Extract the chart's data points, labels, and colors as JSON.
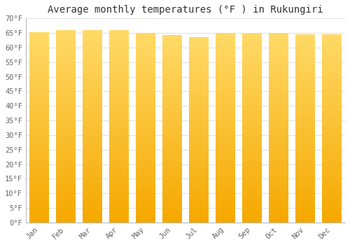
{
  "title": "Average monthly temperatures (°F ) in Rukungiri",
  "months": [
    "Jan",
    "Feb",
    "Mar",
    "Apr",
    "May",
    "Jun",
    "Jul",
    "Aug",
    "Sep",
    "Oct",
    "Nov",
    "Dec"
  ],
  "values": [
    65.3,
    66.0,
    66.0,
    66.0,
    65.1,
    64.2,
    63.7,
    65.0,
    65.0,
    65.0,
    64.6,
    64.6
  ],
  "bar_color_bottom": "#F5A800",
  "bar_color_top": "#FFD966",
  "ylim": [
    0,
    70
  ],
  "yticks": [
    0,
    5,
    10,
    15,
    20,
    25,
    30,
    35,
    40,
    45,
    50,
    55,
    60,
    65,
    70
  ],
  "background_color": "#ffffff",
  "plot_bg_color": "#ffffff",
  "grid_color": "#e0e0e0",
  "title_fontsize": 10,
  "tick_fontsize": 7.5,
  "bar_width": 0.72
}
